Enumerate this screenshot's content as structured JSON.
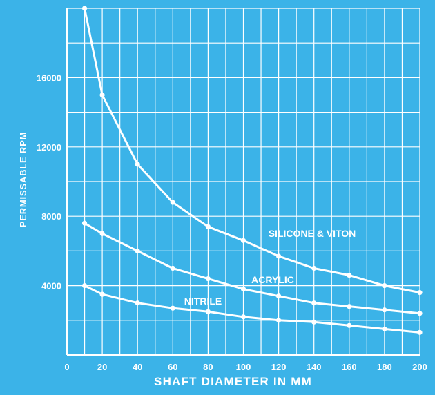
{
  "chart_data": {
    "type": "line",
    "title": "",
    "xlabel": "SHAFT DIAMETER IN MM",
    "ylabel": "PERMISSABLE RPM",
    "xlim": [
      0,
      200
    ],
    "ylim": [
      0,
      20000
    ],
    "x_ticks": [
      "0",
      "20",
      "40",
      "60",
      "80",
      "100",
      "120",
      "140",
      "160",
      "180",
      "200"
    ],
    "y_ticks": [
      "4000",
      "8000",
      "12000",
      "16000"
    ],
    "y_tick_values": [
      4000,
      8000,
      12000,
      16000
    ],
    "grid": true,
    "colors": {
      "background": "#3bb3e8",
      "lines": "#ffffff",
      "grid": "#ffffff"
    },
    "series": [
      {
        "name": "SILICONE & VITON",
        "x": [
          10,
          20,
          40,
          60,
          80,
          100,
          120,
          140,
          160,
          180,
          200
        ],
        "y": [
          20000,
          15000,
          11000,
          8800,
          7400,
          6600,
          5700,
          5000,
          4600,
          4000,
          3600
        ]
      },
      {
        "name": "ACRYLIC",
        "x": [
          10,
          20,
          40,
          60,
          80,
          100,
          120,
          140,
          160,
          180,
          200
        ],
        "y": [
          7600,
          7000,
          6000,
          5000,
          4400,
          3800,
          3400,
          3000,
          2800,
          2600,
          2400
        ]
      },
      {
        "name": "NITRILE",
        "x": [
          10,
          20,
          40,
          60,
          80,
          100,
          120,
          140,
          160,
          180,
          200
        ],
        "y": [
          4000,
          3500,
          3000,
          2700,
          2500,
          2200,
          2000,
          1900,
          1700,
          1500,
          1300
        ]
      }
    ]
  }
}
